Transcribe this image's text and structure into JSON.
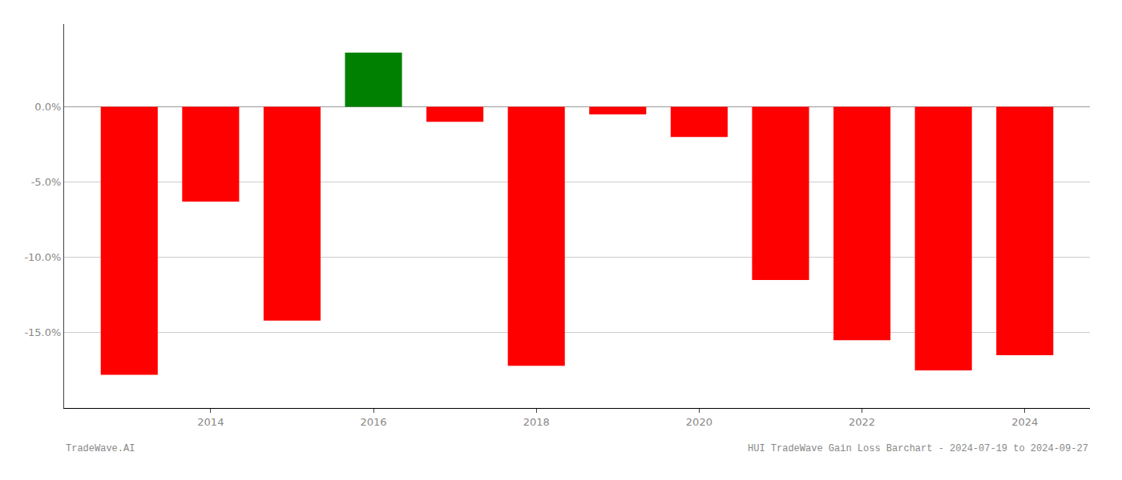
{
  "chart_data": {
    "type": "bar",
    "title": "HUI TradeWave Gain Loss Barchart - 2024-07-19 to 2024-09-27",
    "annotations": [
      {
        "text": "TradeWave.AI"
      }
    ],
    "x": [
      2013,
      2014,
      2015,
      2016,
      2017,
      2018,
      2019,
      2020,
      2021,
      2022,
      2023,
      2024
    ],
    "values": [
      -0.178,
      -0.063,
      -0.142,
      0.036,
      -0.01,
      -0.172,
      -0.005,
      -0.02,
      -0.115,
      -0.155,
      -0.175,
      -0.165
    ],
    "colors": [
      "#ff0000",
      "#ff0000",
      "#ff0000",
      "#008000",
      "#ff0000",
      "#ff0000",
      "#ff0000",
      "#ff0000",
      "#ff0000",
      "#ff0000",
      "#ff0000",
      "#ff0000"
    ],
    "xlim": [
      2012.2,
      2024.8
    ],
    "xticks": [
      2014,
      2016,
      2018,
      2020,
      2022,
      2024
    ],
    "ylim": [
      -0.2,
      0.055
    ],
    "yticks": [
      {
        "value": 0.0,
        "label": "0.0%"
      },
      {
        "value": -0.05,
        "label": "-5.0%"
      },
      {
        "value": -0.1,
        "label": "-10.0%"
      },
      {
        "value": -0.15,
        "label": "-15.0%"
      }
    ],
    "grid": "y"
  }
}
